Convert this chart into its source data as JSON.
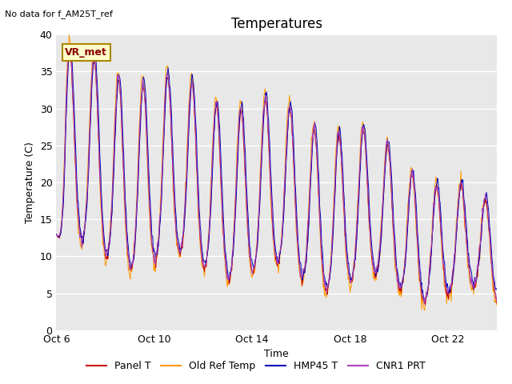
{
  "title": "Temperatures",
  "xlabel": "Time",
  "ylabel": "Temperature (C)",
  "annotation_top_left": "No data for f_AM25T_ref",
  "annotation_box": "VR_met",
  "ylim": [
    0,
    40
  ],
  "xlim": [
    0,
    18
  ],
  "xtick_positions": [
    0,
    4,
    8,
    12,
    16
  ],
  "xtick_labels": [
    "Oct 6",
    "Oct 10",
    "Oct 14",
    "Oct 18",
    "Oct 22"
  ],
  "ytick_positions": [
    0,
    5,
    10,
    15,
    20,
    25,
    30,
    35,
    40
  ],
  "bg_color": "#e8e8e8",
  "line_colors": {
    "panel_t": "#cc0000",
    "old_ref": "#ff9900",
    "hmp45": "#0000bb",
    "cnr1": "#aa44bb"
  },
  "legend_labels": [
    "Panel T",
    "Old Ref Temp",
    "HMP45 T",
    "CNR1 PRT"
  ],
  "title_fontsize": 12,
  "label_fontsize": 9,
  "tick_fontsize": 9
}
